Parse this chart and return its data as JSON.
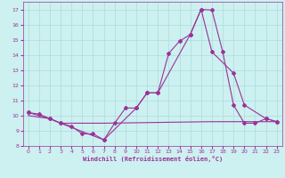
{
  "xlabel": "Windchill (Refroidissement éolien,°C)",
  "bg_color": "#cdf0f0",
  "line_color": "#993399",
  "grid_color": "#aadddd",
  "xlim": [
    -0.5,
    23.5
  ],
  "ylim": [
    8,
    17.5
  ],
  "yticks": [
    8,
    9,
    10,
    11,
    12,
    13,
    14,
    15,
    16,
    17
  ],
  "xticks": [
    0,
    1,
    2,
    3,
    4,
    5,
    6,
    7,
    8,
    9,
    10,
    11,
    12,
    13,
    14,
    15,
    16,
    17,
    18,
    19,
    20,
    21,
    22,
    23
  ],
  "line1_x": [
    0,
    1,
    2,
    3,
    4,
    5,
    6,
    7,
    8,
    9,
    10,
    11,
    12,
    13,
    14,
    15,
    16,
    17,
    18,
    19,
    20,
    21,
    22,
    23
  ],
  "line1_y": [
    10.2,
    10.1,
    9.8,
    9.5,
    9.3,
    8.8,
    8.8,
    8.4,
    9.5,
    10.5,
    10.5,
    11.5,
    11.5,
    14.1,
    14.9,
    15.35,
    17.0,
    16.95,
    14.2,
    10.7,
    9.5,
    9.5,
    9.8,
    9.6
  ],
  "line2_x": [
    0,
    2,
    3,
    7,
    10,
    11,
    12,
    15,
    16,
    17,
    19,
    20,
    22,
    23
  ],
  "line2_y": [
    10.2,
    9.8,
    9.5,
    8.4,
    10.5,
    11.5,
    11.5,
    15.35,
    17.0,
    14.2,
    12.8,
    10.7,
    9.8,
    9.6
  ],
  "line3_x": [
    0,
    2,
    3,
    7,
    17,
    20,
    23
  ],
  "line3_y": [
    10.0,
    9.8,
    9.5,
    9.5,
    9.6,
    9.6,
    9.6
  ]
}
